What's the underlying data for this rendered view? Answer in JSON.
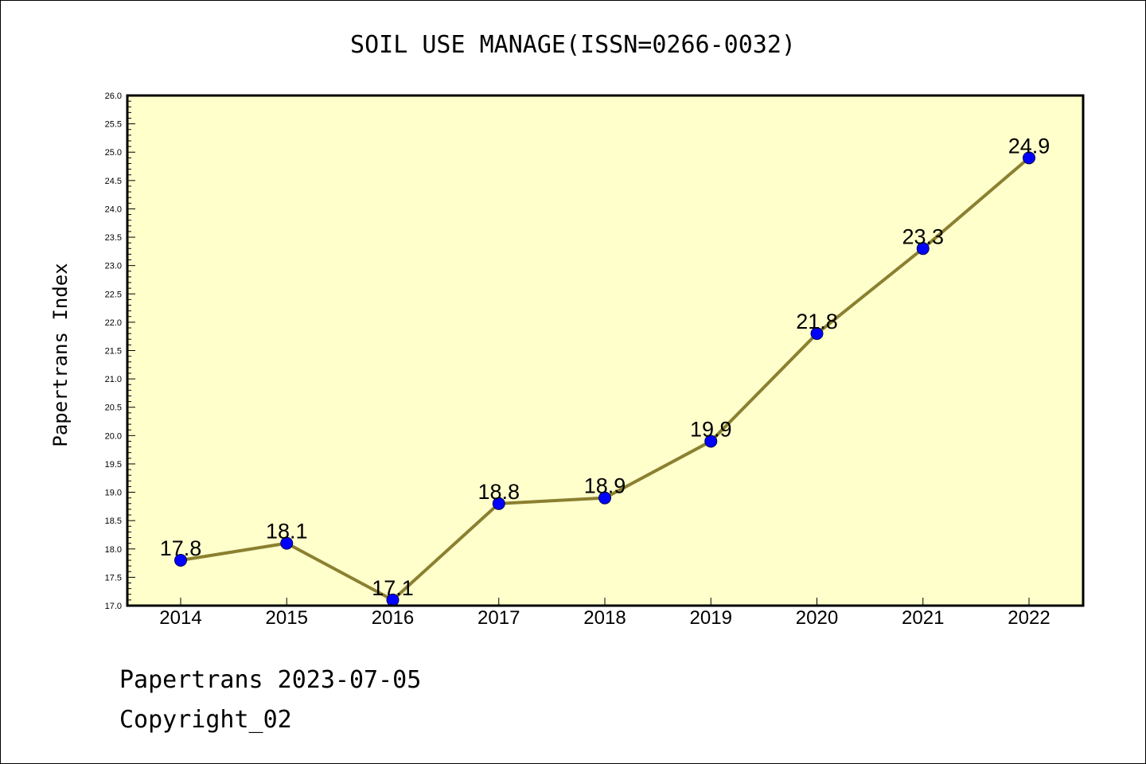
{
  "chart_data": {
    "type": "line",
    "title": "SOIL USE MANAGE(ISSN=0266-0032)",
    "ylabel": "Papertrans Index",
    "xlabel": "",
    "categories": [
      "2014",
      "2015",
      "2016",
      "2017",
      "2018",
      "2019",
      "2020",
      "2021",
      "2022"
    ],
    "values": [
      17.8,
      18.1,
      17.1,
      18.8,
      18.9,
      19.9,
      21.8,
      23.3,
      24.9
    ],
    "data_labels": [
      "17.8",
      "18.1",
      "17.1",
      "18.8",
      "18.9",
      "19.9",
      "21.8",
      "23.3",
      "24.9"
    ],
    "ylim": [
      17.0,
      26.0
    ],
    "yticks": [
      "17.0",
      "17.5",
      "18.0",
      "18.5",
      "19.0",
      "19.5",
      "20.0",
      "20.5",
      "21.0",
      "21.5",
      "22.0",
      "22.5",
      "23.0",
      "23.5",
      "24.0",
      "24.5",
      "25.0",
      "25.5",
      "26.0"
    ],
    "grid": false,
    "colors": {
      "plot_background": "#ffffcc",
      "line": "#8b8030",
      "marker": "#0000ff"
    }
  },
  "footer": {
    "date_line": "Papertrans 2023-07-05",
    "copyright": "Copyright_02"
  }
}
